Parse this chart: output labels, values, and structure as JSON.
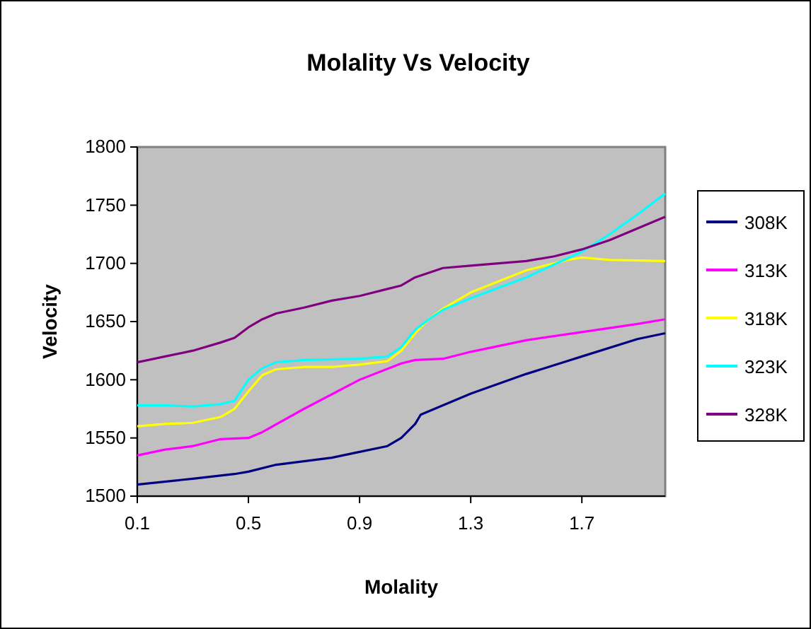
{
  "chart_data": {
    "type": "line",
    "title": "Molality Vs Velocity",
    "xlabel": "Molality",
    "ylabel": "Velocity",
    "xlim": [
      0.1,
      2.0
    ],
    "xticks": [
      0.1,
      0.5,
      0.9,
      1.3,
      1.7
    ],
    "ylim": [
      1500,
      1800
    ],
    "yticks": [
      1500,
      1550,
      1600,
      1650,
      1700,
      1750,
      1800
    ],
    "grid": false,
    "legend": "right",
    "marker": "none",
    "line_style": "solid",
    "series": [
      {
        "name": "308K",
        "color": "#000080",
        "x": [
          0.1,
          0.3,
          0.45,
          0.5,
          0.6,
          0.8,
          0.9,
          1.0,
          1.05,
          1.1,
          1.12,
          1.2,
          1.3,
          1.5,
          1.7,
          1.9,
          2.0
        ],
        "values": [
          1510,
          1515,
          1519,
          1521,
          1527,
          1533,
          1538,
          1543,
          1550,
          1562,
          1570,
          1578,
          1588,
          1605,
          1620,
          1635,
          1640
        ]
      },
      {
        "name": "313K",
        "color": "#ff00ff",
        "x": [
          0.1,
          0.2,
          0.3,
          0.4,
          0.5,
          0.55,
          0.7,
          0.9,
          1.05,
          1.1,
          1.2,
          1.3,
          1.5,
          1.7,
          1.9,
          2.0
        ],
        "values": [
          1535,
          1540,
          1543,
          1549,
          1550,
          1555,
          1575,
          1600,
          1614,
          1617,
          1618,
          1624,
          1634,
          1641,
          1648,
          1652
        ]
      },
      {
        "name": "318K",
        "color": "#ffff00",
        "x": [
          0.1,
          0.2,
          0.3,
          0.4,
          0.45,
          0.5,
          0.55,
          0.6,
          0.7,
          0.8,
          0.9,
          1.0,
          1.05,
          1.1,
          1.15,
          1.2,
          1.3,
          1.5,
          1.65,
          1.7,
          1.8,
          2.0
        ],
        "values": [
          1560,
          1562,
          1563,
          1568,
          1575,
          1590,
          1604,
          1609,
          1611,
          1611,
          1613,
          1616,
          1625,
          1640,
          1652,
          1661,
          1675,
          1694,
          1703,
          1705,
          1703,
          1702
        ]
      },
      {
        "name": "323K",
        "color": "#00ffff",
        "x": [
          0.1,
          0.2,
          0.3,
          0.4,
          0.45,
          0.5,
          0.55,
          0.6,
          0.7,
          0.9,
          1.0,
          1.05,
          1.1,
          1.15,
          1.2,
          1.3,
          1.5,
          1.7,
          1.8,
          1.9,
          2.0
        ],
        "values": [
          1578,
          1578,
          1577,
          1579,
          1582,
          1600,
          1610,
          1615,
          1617,
          1618,
          1620,
          1628,
          1643,
          1652,
          1660,
          1670,
          1688,
          1710,
          1725,
          1742,
          1760
        ]
      },
      {
        "name": "328K",
        "color": "#800080",
        "x": [
          0.1,
          0.2,
          0.3,
          0.4,
          0.45,
          0.5,
          0.55,
          0.6,
          0.7,
          0.8,
          0.9,
          1.0,
          1.05,
          1.1,
          1.2,
          1.3,
          1.5,
          1.6,
          1.7,
          1.8,
          1.9,
          2.0
        ],
        "values": [
          1615,
          1620,
          1625,
          1632,
          1636,
          1645,
          1652,
          1657,
          1662,
          1668,
          1672,
          1678,
          1681,
          1688,
          1696,
          1698,
          1702,
          1706,
          1712,
          1720,
          1730,
          1740
        ]
      }
    ]
  }
}
